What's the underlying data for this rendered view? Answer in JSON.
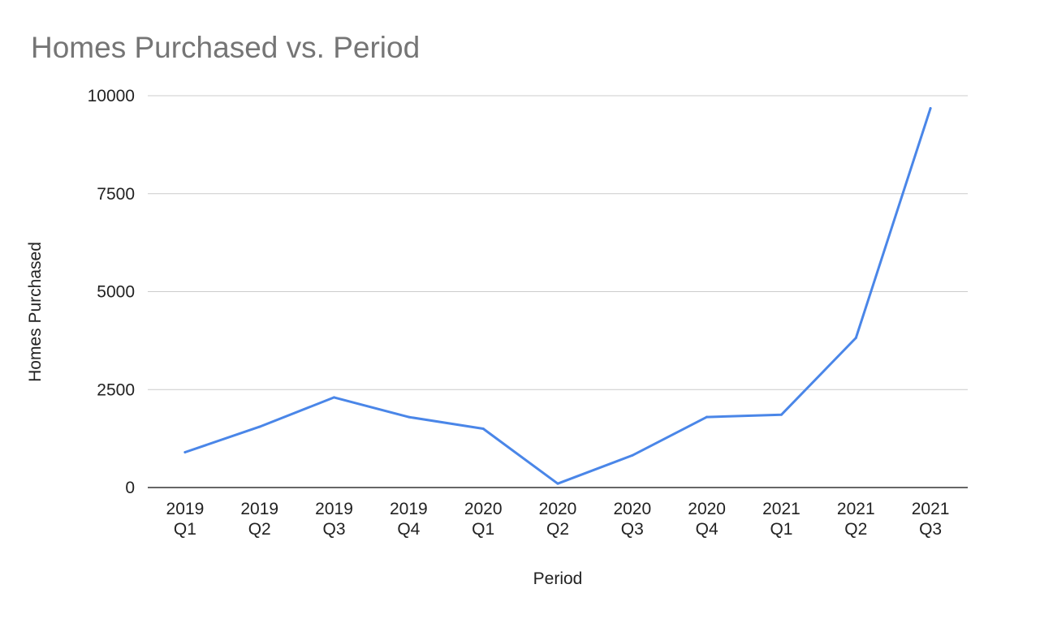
{
  "chart_data": {
    "type": "line",
    "title": "Homes Purchased vs. Period",
    "xlabel": "Period",
    "ylabel": "Homes Purchased",
    "categories": [
      [
        "2019",
        "Q1"
      ],
      [
        "2019",
        "Q2"
      ],
      [
        "2019",
        "Q3"
      ],
      [
        "2019",
        "Q4"
      ],
      [
        "2020",
        "Q1"
      ],
      [
        "2020",
        "Q2"
      ],
      [
        "2020",
        "Q3"
      ],
      [
        "2020",
        "Q4"
      ],
      [
        "2021",
        "Q1"
      ],
      [
        "2021",
        "Q2"
      ],
      [
        "2021",
        "Q3"
      ]
    ],
    "series": [
      {
        "values": [
          900,
          1550,
          2300,
          1800,
          1500,
          100,
          820,
          1800,
          1860,
          3820,
          9680
        ],
        "color": "#4a86e8"
      }
    ],
    "ylim": [
      0,
      10000
    ],
    "yticks": [
      "0",
      "2500",
      "5000",
      "7500",
      "10000"
    ],
    "grid": true,
    "legend": "none"
  }
}
